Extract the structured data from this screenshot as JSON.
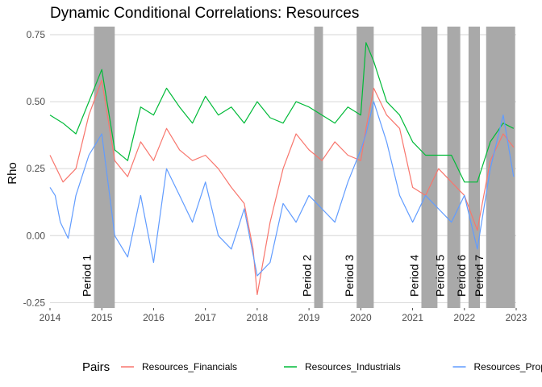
{
  "chart_data": {
    "type": "line",
    "title": "Dynamic Conditional Correlations: Resources",
    "xlabel": "",
    "ylabel": "Rho",
    "xlim": [
      2014.0,
      2023.0
    ],
    "ylim": [
      -0.27,
      0.78
    ],
    "x_ticks": [
      2014,
      2015,
      2016,
      2017,
      2018,
      2019,
      2020,
      2021,
      2022,
      2023
    ],
    "y_ticks": [
      -0.25,
      0.0,
      0.25,
      0.5,
      0.75
    ],
    "y_tick_labels": [
      "-0.25",
      "0.00",
      "0.25",
      "0.50",
      "0.75"
    ],
    "grid": true,
    "legend": {
      "title": "Pairs",
      "position": "bottom"
    },
    "shaded_periods": [
      {
        "label": "Period 1",
        "start": 2014.85,
        "end": 2015.25
      },
      {
        "label": "Period 2",
        "start": 2019.1,
        "end": 2019.27
      },
      {
        "label": "Period 3",
        "start": 2019.92,
        "end": 2020.25
      },
      {
        "label": "Period 4",
        "start": 2021.17,
        "end": 2021.48
      },
      {
        "label": "Period 5",
        "start": 2021.67,
        "end": 2021.92
      },
      {
        "label": "Period 6",
        "start": 2022.08,
        "end": 2022.3
      },
      {
        "label": "Period 7",
        "start": 2022.42,
        "end": 2022.98
      }
    ],
    "series": [
      {
        "name": "Resources_Financials",
        "color": "#F8766D",
        "x": [
          2014.0,
          2014.25,
          2014.5,
          2014.75,
          2015.0,
          2015.25,
          2015.5,
          2015.75,
          2016.0,
          2016.25,
          2016.5,
          2016.75,
          2017.0,
          2017.25,
          2017.5,
          2017.75,
          2017.92,
          2018.0,
          2018.25,
          2018.5,
          2018.75,
          2019.0,
          2019.25,
          2019.5,
          2019.75,
          2020.0,
          2020.1,
          2020.25,
          2020.5,
          2020.75,
          2021.0,
          2021.25,
          2021.5,
          2021.75,
          2022.0,
          2022.25,
          2022.5,
          2022.75,
          2022.95
        ],
        "y": [
          0.3,
          0.2,
          0.25,
          0.45,
          0.58,
          0.28,
          0.22,
          0.35,
          0.28,
          0.4,
          0.32,
          0.28,
          0.3,
          0.25,
          0.18,
          0.12,
          -0.05,
          -0.22,
          0.05,
          0.25,
          0.38,
          0.32,
          0.28,
          0.35,
          0.3,
          0.28,
          0.4,
          0.55,
          0.45,
          0.4,
          0.18,
          0.15,
          0.25,
          0.2,
          0.15,
          0.02,
          0.28,
          0.38,
          0.33
        ]
      },
      {
        "name": "Resources_Industrials",
        "color": "#00BA38",
        "x": [
          2014.0,
          2014.25,
          2014.5,
          2014.75,
          2015.0,
          2015.25,
          2015.5,
          2015.75,
          2016.0,
          2016.25,
          2016.5,
          2016.75,
          2017.0,
          2017.25,
          2017.5,
          2017.75,
          2018.0,
          2018.25,
          2018.5,
          2018.75,
          2019.0,
          2019.25,
          2019.5,
          2019.75,
          2020.0,
          2020.1,
          2020.25,
          2020.5,
          2020.75,
          2021.0,
          2021.25,
          2021.5,
          2021.75,
          2022.0,
          2022.25,
          2022.5,
          2022.75,
          2022.95
        ],
        "y": [
          0.45,
          0.42,
          0.38,
          0.5,
          0.62,
          0.32,
          0.28,
          0.48,
          0.45,
          0.55,
          0.48,
          0.42,
          0.52,
          0.45,
          0.48,
          0.42,
          0.5,
          0.44,
          0.42,
          0.5,
          0.48,
          0.45,
          0.42,
          0.48,
          0.45,
          0.72,
          0.65,
          0.5,
          0.45,
          0.35,
          0.3,
          0.3,
          0.3,
          0.2,
          0.2,
          0.35,
          0.42,
          0.4
        ]
      },
      {
        "name": "Resources_Property",
        "color": "#619CFF",
        "x": [
          2014.0,
          2014.1,
          2014.2,
          2014.35,
          2014.5,
          2014.75,
          2015.0,
          2015.25,
          2015.5,
          2015.75,
          2016.0,
          2016.25,
          2016.5,
          2016.75,
          2017.0,
          2017.25,
          2017.5,
          2017.75,
          2018.0,
          2018.25,
          2018.5,
          2018.75,
          2019.0,
          2019.25,
          2019.5,
          2019.75,
          2020.0,
          2020.1,
          2020.25,
          2020.5,
          2020.75,
          2021.0,
          2021.25,
          2021.5,
          2021.75,
          2022.0,
          2022.25,
          2022.5,
          2022.75,
          2022.95
        ],
        "y": [
          0.18,
          0.15,
          0.05,
          -0.01,
          0.15,
          0.3,
          0.38,
          0.0,
          -0.08,
          0.15,
          -0.1,
          0.25,
          0.15,
          0.05,
          0.2,
          0.0,
          -0.05,
          0.1,
          -0.15,
          -0.1,
          0.12,
          0.05,
          0.15,
          0.1,
          0.05,
          0.2,
          0.32,
          0.38,
          0.5,
          0.35,
          0.15,
          0.05,
          0.15,
          0.1,
          0.05,
          0.15,
          -0.05,
          0.25,
          0.45,
          0.22
        ]
      }
    ]
  }
}
